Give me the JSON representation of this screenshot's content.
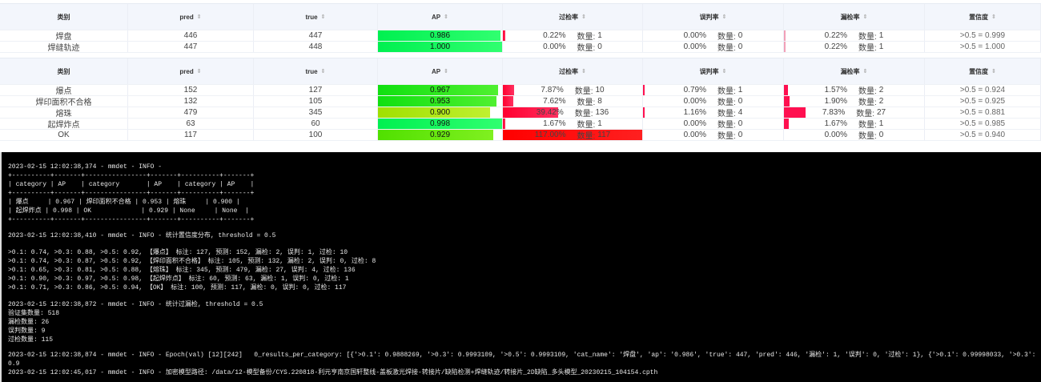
{
  "columns": [
    "类别",
    "pred",
    "true",
    "AP",
    "过检率",
    "误判率",
    "漏检率",
    "置信度"
  ],
  "count_label": "数量:",
  "colors": {
    "ap_high": "#1aff5a",
    "ap_low": "#b8f01a",
    "bar_red": "#ff1040",
    "bar_pink": "#f2a0b8"
  },
  "table1": [
    {
      "cat": "焊盘",
      "pred": "446",
      "true": "447",
      "ap": "0.986",
      "ap_v": 0.986,
      "over": "0.22%",
      "over_v": 0.22,
      "over_n": "1",
      "mis": "0.00%",
      "mis_v": 0,
      "mis_n": "0",
      "miss": "0.22%",
      "miss_v": 0.22,
      "miss_n": "1",
      "conf": ">0.5 = 0.999"
    },
    {
      "cat": "焊缝轨迹",
      "pred": "447",
      "true": "448",
      "ap": "1.000",
      "ap_v": 1.0,
      "over": "0.00%",
      "over_v": 0,
      "over_n": "0",
      "mis": "0.00%",
      "mis_v": 0,
      "mis_n": "0",
      "miss": "0.22%",
      "miss_v": 0.22,
      "miss_n": "1",
      "conf": ">0.5 = 1.000"
    }
  ],
  "table2": [
    {
      "cat": "爆点",
      "pred": "152",
      "true": "127",
      "ap": "0.967",
      "ap_v": 0.967,
      "over": "7.87%",
      "over_v": 7.87,
      "over_n": "10",
      "mis": "0.79%",
      "mis_v": 0.79,
      "mis_n": "1",
      "miss": "1.57%",
      "miss_v": 1.57,
      "miss_n": "2",
      "conf": ">0.5 = 0.924"
    },
    {
      "cat": "焊印面积不合格",
      "pred": "132",
      "true": "105",
      "ap": "0.953",
      "ap_v": 0.953,
      "over": "7.62%",
      "over_v": 7.62,
      "over_n": "8",
      "mis": "0.00%",
      "mis_v": 0,
      "mis_n": "0",
      "miss": "1.90%",
      "miss_v": 1.9,
      "miss_n": "2",
      "conf": ">0.5 = 0.925"
    },
    {
      "cat": "熔珠",
      "pred": "479",
      "true": "345",
      "ap": "0.900",
      "ap_v": 0.9,
      "over": "39.42%",
      "over_v": 39.42,
      "over_n": "136",
      "mis": "1.16%",
      "mis_v": 1.16,
      "mis_n": "4",
      "miss": "7.83%",
      "miss_v": 7.83,
      "miss_n": "27",
      "conf": ">0.5 = 0.881"
    },
    {
      "cat": "起焊炸点",
      "pred": "63",
      "true": "60",
      "ap": "0.998",
      "ap_v": 0.998,
      "over": "1.67%",
      "over_v": 1.67,
      "over_n": "1",
      "mis": "0.00%",
      "mis_v": 0,
      "mis_n": "0",
      "miss": "1.67%",
      "miss_v": 1.67,
      "miss_n": "1",
      "conf": ">0.5 = 0.985"
    },
    {
      "cat": "OK",
      "pred": "117",
      "true": "100",
      "ap": "0.929",
      "ap_v": 0.929,
      "over": "117.00%",
      "over_v": 117,
      "over_n": "117",
      "mis": "0.00%",
      "mis_v": 0,
      "mis_n": "0",
      "miss": "0.00%",
      "miss_v": 0,
      "miss_n": "0",
      "conf": ">0.5 = 0.940"
    }
  ],
  "terminal": {
    "lines": [
      "2023-02-15 12:02:38,374 - mmdet - INFO -",
      "+----------+-------+----------------+-------+----------+-------+",
      "| category | AP    | category       | AP    | category | AP    |",
      "+----------+-------+----------------+-------+----------+-------+",
      "| 爆点     | 0.967 | 焊印面积不合格 | 0.953 | 熔珠     | 0.900 |",
      "| 起焊炸点 | 0.998 | OK             | 0.929 | None     | None  |",
      "+----------+-------+----------------+-------+----------+-------+",
      "",
      "2023-02-15 12:02:38,410 - mmdet - INFO - 统计置信度分布, threshold = 0.5",
      "",
      ">0.1: 0.74, >0.3: 0.88, >0.5: 0.92, 【爆点】 标注: 127, 预测: 152, 漏检: 2, 误判: 1, 过检: 10",
      ">0.1: 0.74, >0.3: 0.87, >0.5: 0.92, 【焊印面积不合格】 标注: 105, 预测: 132, 漏检: 2, 误判: 0, 过检: 8",
      ">0.1: 0.65, >0.3: 0.81, >0.5: 0.88, 【熔珠】 标注: 345, 预测: 479, 漏检: 27, 误判: 4, 过检: 136",
      ">0.1: 0.90, >0.3: 0.97, >0.5: 0.98, 【起焊炸点】 标注: 60, 预测: 63, 漏检: 1, 误判: 0, 过检: 1",
      ">0.1: 0.71, >0.3: 0.86, >0.5: 0.94, 【OK】 标注: 100, 预测: 117, 漏检: 0, 误判: 0, 过检: 117",
      "",
      "2023-02-15 12:02:38,872 - mmdet - INFO - 统计过漏检, threshold = 0.5",
      "验证集数量: 518",
      "漏检数量: 26",
      "误判数量: 9",
      "过检数量: 115",
      "",
      "2023-02-15 12:02:38,874 - mmdet - INFO - Epoch(val) [12][242]   0_results_per_category: [{'>0.1': 0.9888269, '>0.3': 0.9993109, '>0.5': 0.9993109, 'cat_name': '焊盘', 'ap': '0.986', 'true': 447, 'pred': 446, '漏检': 1, '误判': 0, '过检': 1}, {'>0.1': 0.99998033, '>0.3': 0.9",
      "",
      "2023-02-15 12:02:45,017 - mmdet - INFO - 加密模型路径: /data/12-模型备份/CYS.220818-利元亨南京国轩整线-盖板激光焊接-转接片/缺陷检测+焊缝轨迹/转接片_2D缺陷_多头模型_20230215_104154.cpth"
    ]
  }
}
